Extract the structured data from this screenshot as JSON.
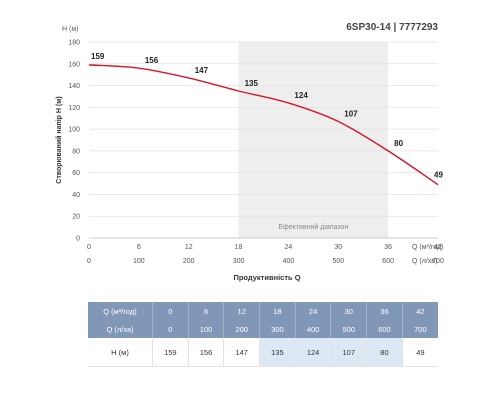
{
  "chart_data": {
    "type": "line",
    "title": "6SP30-14 | 7777293",
    "y_unit_label": "H (м)",
    "ylabel": "Створюваний напір H (м)",
    "xlabel": "Продуктивність Q",
    "x_unit_label_primary": "Q (м³/год)",
    "x_unit_label_secondary": "Q (л/хв)",
    "ylim": [
      0,
      180
    ],
    "yticks": [
      "0",
      "20",
      "40",
      "60",
      "80",
      "100",
      "120",
      "140",
      "160",
      "180"
    ],
    "xlim": [
      0,
      42
    ],
    "x_ticks_primary": [
      "0",
      "6",
      "12",
      "18",
      "24",
      "30",
      "36",
      "42"
    ],
    "x_ticks_secondary": [
      "0",
      "100",
      "200",
      "300",
      "400",
      "500",
      "600",
      "700"
    ],
    "efficient_range": {
      "label": "Ефективний діапазон",
      "x_from": 18,
      "x_to": 36
    },
    "series_color": "#d6152a",
    "grid": true,
    "x": [
      0,
      6,
      12,
      18,
      24,
      30,
      36,
      42
    ],
    "values": [
      159,
      156,
      147,
      135,
      124,
      107,
      80,
      49
    ],
    "point_labels": [
      "159",
      "156",
      "147",
      "135",
      "124",
      "107",
      "80",
      "49"
    ]
  },
  "table": {
    "row1_header": "Q (м³/год)",
    "row1": [
      "0",
      "6",
      "12",
      "18",
      "24",
      "30",
      "36",
      "42"
    ],
    "row2_header": "Q (л/хв)",
    "row2": [
      "0",
      "100",
      "200",
      "300",
      "400",
      "500",
      "600",
      "700"
    ],
    "row3_header": "H (м)",
    "row3": [
      "159",
      "156",
      "147",
      "135",
      "124",
      "107",
      "80",
      "49"
    ],
    "header_color": "#8097b8",
    "highlight_color": "#dde8f5"
  }
}
